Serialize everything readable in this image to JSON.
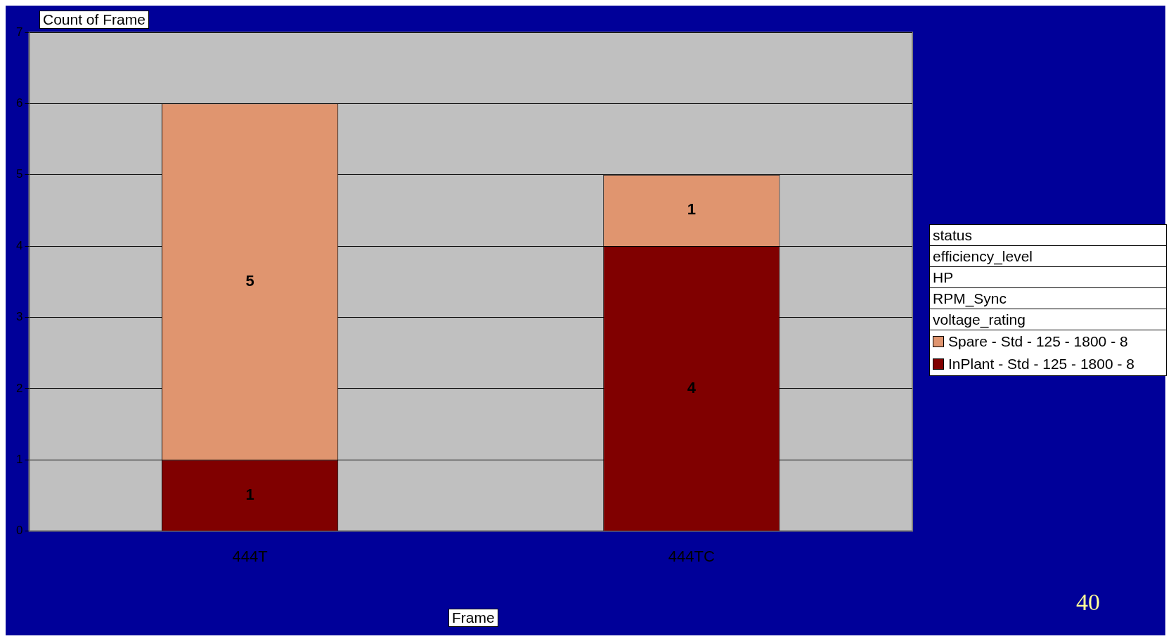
{
  "chart_data": {
    "type": "bar",
    "stacked": true,
    "ylabel": "Count of Frame",
    "xlabel": "Frame",
    "legend_title": "status\nefficiency_level\nHP\nRPM_Sync\nvoltage_rating",
    "legend": "right",
    "categories": [
      "444T",
      "444TC"
    ],
    "series": [
      {
        "name": "InPlant - Std - 125 - 1800 - 8",
        "color": "#800000",
        "values": [
          1,
          4
        ]
      },
      {
        "name": "Spare - Std - 125 - 1800 - 8",
        "color": "#e0956f",
        "values": [
          5,
          1
        ]
      }
    ],
    "ylim": [
      0,
      7
    ],
    "yticks": [
      0,
      1,
      2,
      3,
      4,
      5,
      6,
      7
    ],
    "grid": "y",
    "data_labels": true,
    "annotations": [
      "40"
    ]
  }
}
